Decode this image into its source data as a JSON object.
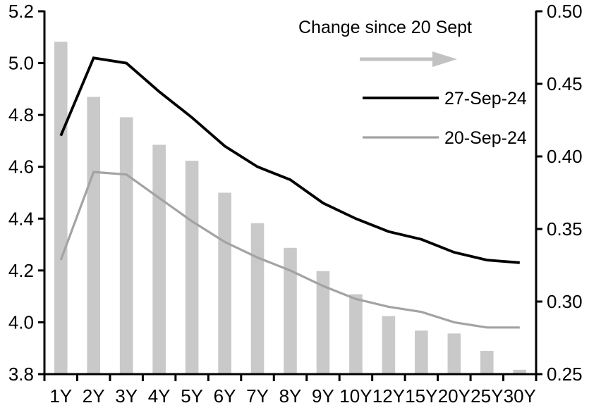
{
  "chart_data": {
    "type": "bar",
    "subtype": "combo-bar-line-dual-axis",
    "title": "",
    "categories": [
      "1Y",
      "2Y",
      "3Y",
      "4Y",
      "5Y",
      "6Y",
      "7Y",
      "8Y",
      "9Y",
      "10Y",
      "12Y",
      "15Y",
      "20Y",
      "25Y",
      "30Y"
    ],
    "series": [
      {
        "name": "Change since 20 Sept",
        "type": "bar",
        "axis": "right",
        "color": "#c9c9c9",
        "values": [
          0.479,
          0.441,
          0.427,
          0.408,
          0.397,
          0.375,
          0.354,
          0.337,
          0.321,
          0.305,
          0.29,
          0.28,
          0.278,
          0.266,
          0.253
        ]
      },
      {
        "name": "27-Sep-24",
        "type": "line",
        "axis": "left",
        "color": "#000000",
        "values": [
          4.72,
          5.02,
          5.0,
          4.89,
          4.79,
          4.68,
          4.6,
          4.55,
          4.46,
          4.4,
          4.35,
          4.32,
          4.27,
          4.24,
          4.23
        ]
      },
      {
        "name": "20-Sep-24",
        "type": "line",
        "axis": "left",
        "color": "#a3a3a3",
        "values": [
          4.24,
          4.58,
          4.57,
          4.48,
          4.39,
          4.31,
          4.25,
          4.2,
          4.14,
          4.09,
          4.06,
          4.04,
          4.0,
          3.98,
          3.98
        ]
      }
    ],
    "left_axis": {
      "min": 3.8,
      "max": 5.2,
      "step": 0.2,
      "decimals": 1,
      "tick_labels": [
        "3.8",
        "4.0",
        "4.2",
        "4.4",
        "4.6",
        "4.8",
        "5.0",
        "5.2"
      ]
    },
    "right_axis": {
      "min": 0.25,
      "max": 0.5,
      "step": 0.05,
      "decimals": 2,
      "tick_labels": [
        "0.25",
        "0.30",
        "0.35",
        "0.40",
        "0.45",
        "0.50"
      ]
    },
    "xlabel": "",
    "ylabel": "",
    "grid": false,
    "legend": {
      "position": "top-right-inside",
      "title": "Change since 20 Sept",
      "arrow_color": "#c2c2c2",
      "entries": [
        "27-Sep-24",
        "20-Sep-24"
      ]
    }
  }
}
